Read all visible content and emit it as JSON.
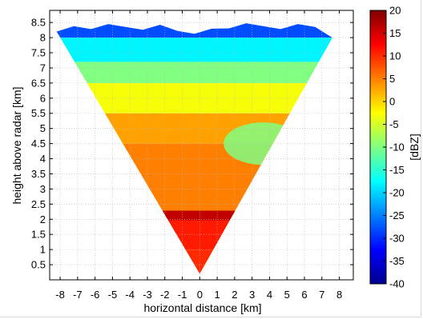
{
  "chart_data": {
    "type": "heatmap",
    "title": "",
    "xlabel": "horizontal distance [km]",
    "ylabel": "height above radar [km]",
    "xlim": [
      -8.6,
      8.8
    ],
    "ylim": [
      0,
      8.9
    ],
    "x_ticks": [
      "-8",
      "-7",
      "-6",
      "-5",
      "-4",
      "-3",
      "-2",
      "-1",
      "0",
      "1",
      "2",
      "3",
      "4",
      "5",
      "6",
      "7",
      "8"
    ],
    "y_ticks": [
      "0.5",
      "1",
      "1.5",
      "2",
      "2.5",
      "3",
      "3.5",
      "4",
      "4.5",
      "5",
      "5.5",
      "6",
      "6.5",
      "7",
      "7.5",
      "8",
      "8.5"
    ],
    "grid": true,
    "colorbar": {
      "label": "[dBZ]",
      "min": -40,
      "max": 20,
      "ticks": [
        "20",
        "15",
        "10",
        "5",
        "0",
        "-5",
        "-10",
        "-15",
        "-20",
        "-25",
        "-30",
        "-35",
        "-40"
      ],
      "colormap": "jet"
    },
    "scan_sector": {
      "apex": [
        0,
        0.2
      ],
      "left_edge_top": [
        -8.2,
        8.2
      ],
      "right_edge_top": [
        7.6,
        8.0
      ]
    },
    "reflectivity_layers": [
      {
        "height_range": [
          0.2,
          1.0
        ],
        "dbz": 10
      },
      {
        "height_range": [
          1.0,
          2.0
        ],
        "dbz": 11
      },
      {
        "height_range": [
          2.0,
          2.2
        ],
        "dbz": 15
      },
      {
        "height_range": [
          2.2,
          4.5
        ],
        "dbz": 5
      },
      {
        "height_range": [
          4.5,
          5.5
        ],
        "dbz": 3
      },
      {
        "height_range": [
          5.5,
          6.5
        ],
        "dbz": -3
      },
      {
        "height_range": [
          6.5,
          7.2
        ],
        "dbz": -10
      },
      {
        "height_range": [
          7.2,
          8.0
        ],
        "dbz": -18
      },
      {
        "height_range": [
          8.0,
          8.7
        ],
        "dbz": -28
      }
    ],
    "features": [
      {
        "name": "melting-layer bright band",
        "height": 2.1,
        "dbz": 16
      },
      {
        "name": "dry intrusion",
        "x_range": [
          1.0,
          5.0
        ],
        "height_range": [
          3.8,
          5.2
        ],
        "dbz": -10
      }
    ]
  }
}
